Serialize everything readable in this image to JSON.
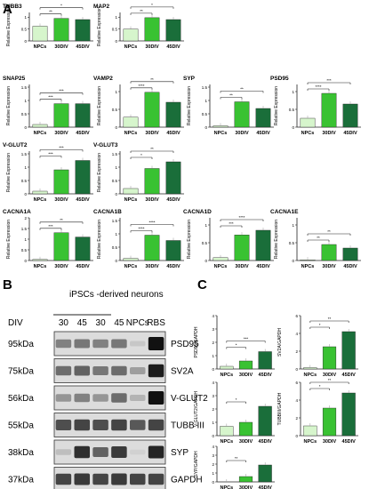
{
  "panel_labels": {
    "a": "A",
    "b": "B",
    "c": "C"
  },
  "colors": {
    "npc": "#d6f5cc",
    "div30": "#39c232",
    "div45": "#1a6e3a",
    "axis": "#222222",
    "blot_bg": "#dcdcdc",
    "band": "#111111"
  },
  "chart_data": [
    {
      "type": "bar",
      "title": "TUBB3",
      "ylabel": "Relative Expression",
      "categories": [
        "NPCs",
        "30DIV",
        "45DIV"
      ],
      "values": [
        0.62,
        0.95,
        0.9
      ],
      "ylim": [
        0,
        1.2
      ],
      "yticks": [
        0,
        0.5,
        1
      ],
      "sig": [
        "**",
        "*"
      ]
    },
    {
      "type": "bar",
      "title": "MAP2",
      "ylabel": "Relative Expression",
      "categories": [
        "NPCs",
        "30DIV",
        "45DIV"
      ],
      "values": [
        0.5,
        0.98,
        0.9
      ],
      "ylim": [
        0,
        1.2
      ],
      "yticks": [
        0,
        0.5,
        1
      ],
      "sig": [
        "**",
        "*"
      ]
    },
    {
      "type": "bar",
      "title": "SNAP25",
      "ylabel": "Relative Expression",
      "categories": [
        "NPCs",
        "30DIV",
        "45DIV"
      ],
      "values": [
        0.1,
        0.88,
        0.88
      ],
      "ylim": [
        0,
        1.6
      ],
      "yticks": [
        0,
        0.5,
        1,
        1.5
      ],
      "sig": [
        "***",
        "***"
      ]
    },
    {
      "type": "bar",
      "title": "VAMP2",
      "ylabel": "Relative Expression",
      "categories": [
        "NPCs",
        "30DIV",
        "45DIV"
      ],
      "values": [
        0.28,
        0.98,
        0.7
      ],
      "ylim": [
        0,
        1.2
      ],
      "yticks": [
        0,
        0.5,
        1
      ],
      "sig": [
        "****",
        "**"
      ]
    },
    {
      "type": "bar",
      "title": "SYP",
      "ylabel": "Relative Expression",
      "categories": [
        "NPCs",
        "30DIV",
        "45DIV"
      ],
      "values": [
        0.05,
        0.95,
        0.7
      ],
      "ylim": [
        0,
        1.6
      ],
      "yticks": [
        0,
        0.5,
        1,
        1.5
      ],
      "sig": [
        "**",
        "**"
      ]
    },
    {
      "type": "bar",
      "title": "PSD95",
      "ylabel": "Relative Expression",
      "categories": [
        "NPCs",
        "30DIV",
        "45DIV"
      ],
      "values": [
        0.25,
        0.95,
        0.65
      ],
      "ylim": [
        0,
        1.2
      ],
      "yticks": [
        0,
        0.5,
        1
      ],
      "sig": [
        "****",
        "***"
      ]
    },
    {
      "type": "bar",
      "title": "V-GLUT2",
      "ylabel": "Relative Expression",
      "categories": [
        "NPCs",
        "30DIV",
        "45DIV"
      ],
      "values": [
        0.1,
        0.9,
        1.25
      ],
      "ylim": [
        0,
        1.6
      ],
      "yticks": [
        0,
        0.5,
        1,
        1.5
      ],
      "sig": [
        "***",
        "***"
      ]
    },
    {
      "type": "bar",
      "title": "V-GLUT3",
      "ylabel": "Relative Expression",
      "categories": [
        "NPCs",
        "30DIV",
        "45DIV"
      ],
      "values": [
        0.2,
        0.95,
        1.2
      ],
      "ylim": [
        0,
        1.6
      ],
      "yticks": [
        0,
        0.5,
        1,
        1.5
      ],
      "sig": [
        "*",
        "**"
      ]
    },
    {
      "type": "bar",
      "title": "CACNA1A",
      "ylabel": "Relative Expression",
      "categories": [
        "NPCs",
        "30DIV",
        "45DIV"
      ],
      "values": [
        0.05,
        1.3,
        1.1
      ],
      "ylim": [
        0,
        2.0
      ],
      "yticks": [
        0,
        0.5,
        1,
        1.5,
        2
      ],
      "sig": [
        "***",
        "**"
      ]
    },
    {
      "type": "bar",
      "title": "CACNA1B",
      "ylabel": "Relative Expression",
      "categories": [
        "NPCs",
        "30DIV",
        "45DIV"
      ],
      "values": [
        0.08,
        0.95,
        0.75
      ],
      "ylim": [
        0,
        1.6
      ],
      "yticks": [
        0,
        0.5,
        1,
        1.5
      ],
      "sig": [
        "****",
        "****"
      ]
    },
    {
      "type": "bar",
      "title": "CACNA1D",
      "ylabel": "Relative Expression",
      "categories": [
        "NPCs",
        "30DIV",
        "45DIV"
      ],
      "values": [
        0.08,
        0.72,
        0.85
      ],
      "ylim": [
        0,
        1.2
      ],
      "yticks": [
        0,
        0.5,
        1
      ],
      "sig": [
        "***",
        "****"
      ]
    },
    {
      "type": "bar",
      "title": "CACNA1E",
      "ylabel": "Relative Expression",
      "categories": [
        "NPCs",
        "30DIV",
        "45DIV"
      ],
      "values": [
        0.02,
        0.45,
        0.35
      ],
      "ylim": [
        0,
        1.2
      ],
      "yticks": [
        0,
        0.5,
        1
      ],
      "sig": [
        "**",
        "**"
      ]
    },
    {
      "type": "bar",
      "title": "",
      "ylabel": "PSD95/GAPDH",
      "categories": [
        "NPCs",
        "30DIV",
        "45DIV"
      ],
      "values": [
        0.2,
        0.6,
        1.3
      ],
      "ylim": [
        0,
        4
      ],
      "yticks": [
        0,
        1,
        2,
        3,
        4
      ],
      "sig": [
        "*",
        "***"
      ]
    },
    {
      "type": "bar",
      "title": "",
      "ylabel": "SV2A/GAPDH",
      "categories": [
        "NPCs",
        "30DIV",
        "45DIV"
      ],
      "values": [
        0.15,
        2.5,
        4.2
      ],
      "ylim": [
        0,
        6
      ],
      "yticks": [
        0,
        2,
        4,
        6
      ],
      "sig": [
        "*",
        "**"
      ]
    },
    {
      "type": "bar",
      "title": "",
      "ylabel": "V-GLUT2/GAPDH",
      "categories": [
        "NPCs",
        "30DIV",
        "45DIV"
      ],
      "values": [
        0.7,
        1.0,
        2.2
      ],
      "ylim": [
        0,
        4
      ],
      "yticks": [
        0,
        1,
        2,
        3,
        4
      ],
      "sig": [
        "*"
      ]
    },
    {
      "type": "bar",
      "title": "",
      "ylabel": "TUBBIII/GAPDH",
      "categories": [
        "NPCs",
        "30DIV",
        "45DIV"
      ],
      "values": [
        1.1,
        3.1,
        4.8
      ],
      "ylim": [
        0,
        6
      ],
      "yticks": [
        0,
        2,
        4,
        6
      ],
      "sig": [
        "*",
        "**"
      ]
    },
    {
      "type": "bar",
      "title": "",
      "ylabel": "SYP/GAPDH",
      "categories": [
        "NPCs",
        "30DIV",
        "45DIV"
      ],
      "values": [
        0,
        0.6,
        1.9
      ],
      "ylim": [
        0,
        4
      ],
      "yticks": [
        0,
        1,
        2,
        3,
        4
      ],
      "sig": [
        "**"
      ]
    }
  ],
  "western": {
    "header": "iPSCs -derived neurons",
    "div_label": "DIV",
    "lanes": [
      "30",
      "45",
      "30",
      "45",
      "NPCs",
      "RBS"
    ],
    "blots": [
      {
        "size": "95kDa",
        "protein": "PSD95",
        "intensity": [
          0.45,
          0.5,
          0.45,
          0.5,
          0.1,
          1.0
        ]
      },
      {
        "size": "75kDa",
        "protein": "SV2A",
        "intensity": [
          0.55,
          0.6,
          0.5,
          0.55,
          0.3,
          0.95
        ]
      },
      {
        "size": "56kDa",
        "protein": "V-GLUT2",
        "intensity": [
          0.35,
          0.45,
          0.35,
          0.55,
          0.2,
          1.0
        ]
      },
      {
        "size": "55kDa",
        "protein": "TUBB III",
        "intensity": [
          0.7,
          0.75,
          0.7,
          0.75,
          0.65,
          0.75
        ]
      },
      {
        "size": "38kDa",
        "protein": "SYP",
        "intensity": [
          0.15,
          0.85,
          0.6,
          0.8,
          0.05,
          0.9
        ]
      },
      {
        "size": "37kDa",
        "protein": "GAPDH",
        "intensity": [
          0.75,
          0.8,
          0.75,
          0.8,
          0.75,
          0.75
        ]
      }
    ]
  }
}
